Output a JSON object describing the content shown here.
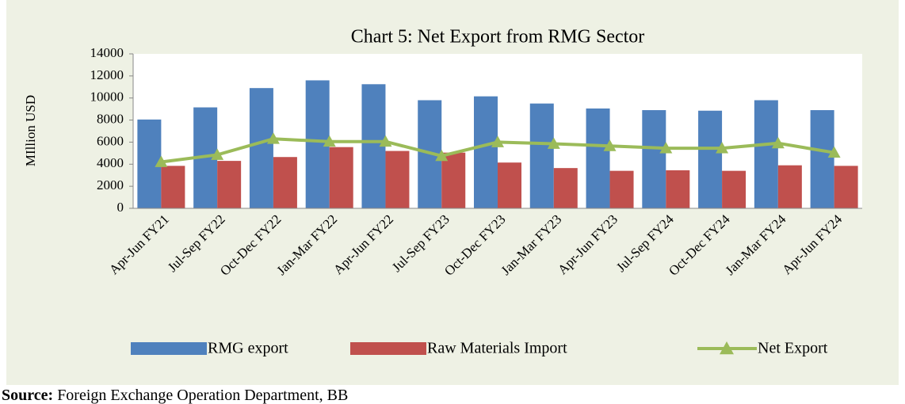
{
  "chart_data": {
    "type": "bar_line",
    "title": "Chart 5: Net Export from RMG Sector",
    "y_label": "MIllion USD",
    "categories": [
      "Apr-Jun FY21",
      "Jul-Sep FY22",
      "Oct-Dec FY22",
      "Jan-Mar FY22",
      "Apr-Jun FY22",
      "Jul-Sep FY23",
      "Oct-Dec FY23",
      "Jan-Mar FY23",
      "Apr-Jun FY23",
      "Jul-Sep FY24",
      "Oct-Dec FY24",
      "Jan-Mar FY24",
      "Apr-Jun FY24"
    ],
    "series": [
      {
        "name": "RMG export",
        "type": "bar",
        "color": "#4f81bd",
        "values": [
          8050,
          9150,
          10900,
          11600,
          11250,
          9800,
          10150,
          9500,
          9050,
          8900,
          8850,
          9800,
          8900
        ]
      },
      {
        "name": "Raw Materials Import",
        "type": "bar",
        "color": "#c0504d",
        "values": [
          3850,
          4300,
          4650,
          5550,
          5200,
          5050,
          4150,
          3650,
          3400,
          3450,
          3400,
          3900,
          3850
        ]
      },
      {
        "name": "Net Export",
        "type": "line",
        "color": "#9bbb59",
        "values": [
          4200,
          4850,
          6300,
          6050,
          6050,
          4750,
          6000,
          5850,
          5650,
          5450,
          5450,
          5900,
          5050
        ]
      }
    ],
    "ylim": [
      0,
      14000
    ],
    "yticks": [
      0,
      2000,
      4000,
      6000,
      8000,
      10000,
      12000,
      14000
    ],
    "grid": false,
    "legend": "bottom"
  },
  "source": {
    "label": "Source:",
    "text": "Foreign Exchange Operation Department, BB"
  }
}
